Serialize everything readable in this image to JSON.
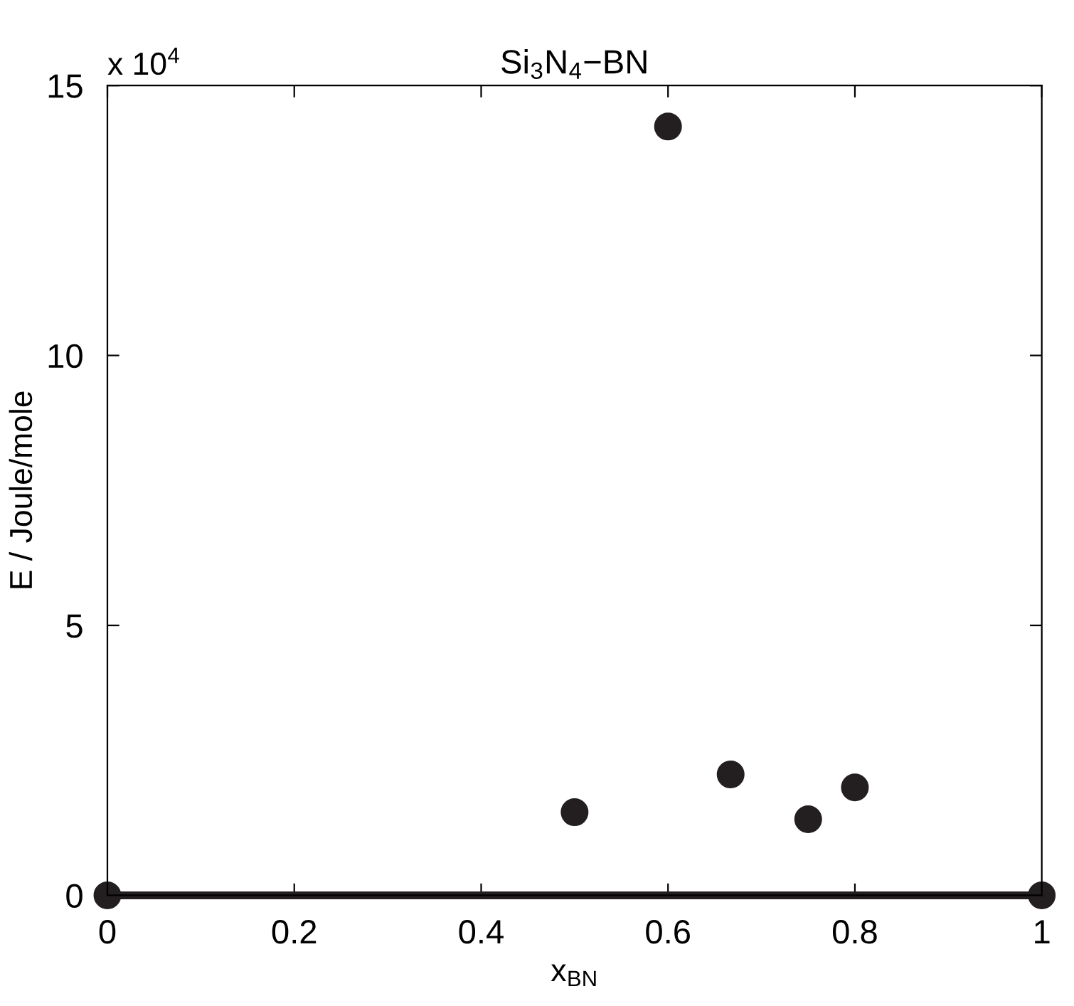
{
  "chart_data": {
    "type": "scatter",
    "title": "Si$_{3}$N$_{4}$−BN",
    "xlabel": "x$_{BN}$",
    "ylabel": "E / Joule/mole",
    "annotations": [
      "x 10$^{4}$"
    ],
    "series": [
      {
        "type": "line",
        "color": "#231f20",
        "x": [
          0,
          1
        ],
        "values": [
          0,
          0
        ],
        "marker": "circle",
        "line_style": "solid"
      },
      {
        "color": "#231f20",
        "x": [
          0.5,
          0.6,
          0.667,
          0.75,
          0.8
        ],
        "values": [
          1.54,
          14.24,
          2.24,
          1.41,
          2.0
        ],
        "marker": "circle"
      }
    ],
    "xlim": [
      0,
      1
    ],
    "ylim": [
      0,
      15
    ],
    "xticks": [
      0,
      0.2,
      0.4,
      0.6,
      0.8,
      1
    ],
    "yticks": [
      0,
      5,
      10,
      15
    ],
    "grid": false,
    "legend": false
  }
}
